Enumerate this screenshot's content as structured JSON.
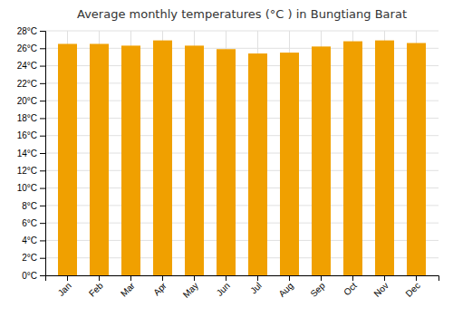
{
  "chart_data": {
    "type": "bar",
    "title": "Average monthly temperatures (°C ) in Bungtiang Barat",
    "categories": [
      "Jan",
      "Feb",
      "Mar",
      "Apr",
      "May",
      "Jun",
      "Jul",
      "Aug",
      "Sep",
      "Oct",
      "Nov",
      "Dec"
    ],
    "values": [
      26.5,
      26.5,
      26.3,
      26.9,
      26.3,
      25.9,
      25.4,
      25.5,
      26.2,
      26.8,
      26.9,
      26.6
    ],
    "color": "#F0A000",
    "ylim": [
      0,
      28
    ],
    "yticks": [
      {
        "value": 0,
        "label": "0°C"
      },
      {
        "value": 2,
        "label": "2°C"
      },
      {
        "value": 4,
        "label": "4°C"
      },
      {
        "value": 6,
        "label": "6°C"
      },
      {
        "value": 8,
        "label": "8°C"
      },
      {
        "value": 10,
        "label": "10°C"
      },
      {
        "value": 12,
        "label": "12°C"
      },
      {
        "value": 14,
        "label": "14°C"
      },
      {
        "value": 16,
        "label": "16°C"
      },
      {
        "value": 18,
        "label": "18°C"
      },
      {
        "value": 20,
        "label": "20°C"
      },
      {
        "value": 22,
        "label": "22°C"
      },
      {
        "value": 24,
        "label": "24°C"
      },
      {
        "value": 26,
        "label": "26°C"
      },
      {
        "value": 28,
        "label": "28°C"
      }
    ],
    "grid": true
  }
}
